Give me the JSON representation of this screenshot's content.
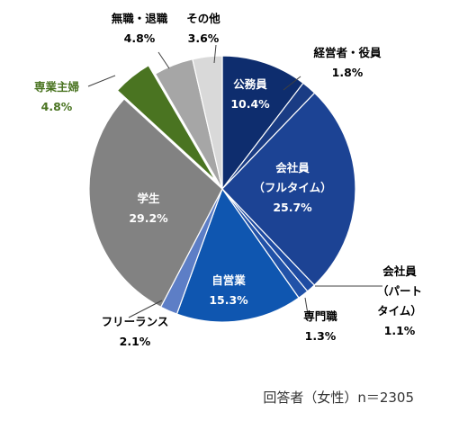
{
  "chart_data": {
    "type": "pie",
    "note": "回答者（女性）n＝2305",
    "slices": [
      {
        "name": "公務員",
        "value": 10.4,
        "value_label": "10.4%",
        "color": "#0e2d6e",
        "label_color": "#ffffff"
      },
      {
        "name": "経営者・役員",
        "value": 1.8,
        "value_label": "1.8%",
        "color": "#1a3c84",
        "label_color": "#000000"
      },
      {
        "name": "会社員（フルタイム）",
        "value": 25.7,
        "value_label": "25.7%",
        "color": "#1c4394",
        "label_color": "#ffffff",
        "label_lines": [
          "会社員",
          "（フルタイム）"
        ]
      },
      {
        "name": "会社員（パートタイム）",
        "value": 1.1,
        "value_label": "1.1%",
        "color": "#1e4ba2",
        "label_color": "#000000",
        "label_lines": [
          "会社員",
          "（パート",
          "タイム）"
        ]
      },
      {
        "name": "専門職",
        "value": 1.3,
        "value_label": "1.3%",
        "color": "#2152a8",
        "label_color": "#000000"
      },
      {
        "name": "自営業",
        "value": 15.3,
        "value_label": "15.3%",
        "color": "#0f56b0",
        "label_color": "#ffffff"
      },
      {
        "name": "フリーランス",
        "value": 2.1,
        "value_label": "2.1%",
        "color": "#5d7ec6",
        "label_color": "#000000"
      },
      {
        "name": "学生",
        "value": 29.2,
        "value_label": "29.2%",
        "color": "#828282",
        "label_color": "#ffffff"
      },
      {
        "name": "専業主婦",
        "value": 4.8,
        "value_label": "4.8%",
        "color": "#4a7421",
        "label_color": "#4a7421",
        "exploded": true
      },
      {
        "name": "無職・退職",
        "value": 4.8,
        "value_label": "4.8%",
        "color": "#a6a6a6",
        "label_color": "#000000"
      },
      {
        "name": "その他",
        "value": 3.6,
        "value_label": "3.6%",
        "color": "#d9d9d9",
        "label_color": "#000000"
      }
    ]
  }
}
